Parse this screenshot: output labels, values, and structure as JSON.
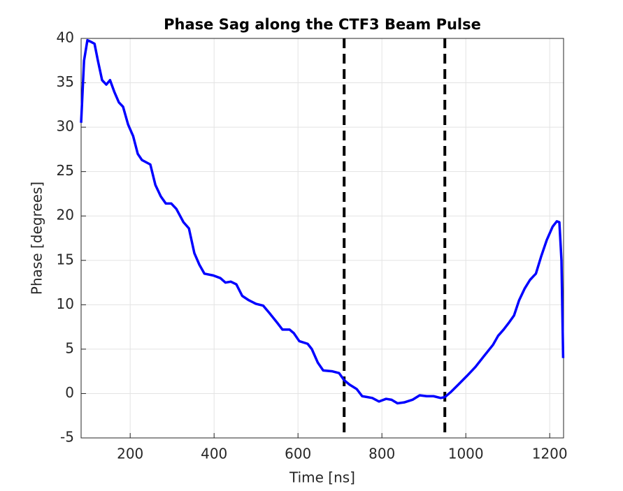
{
  "chart_data": {
    "type": "line",
    "title": "Phase Sag along the CTF3 Beam Pulse",
    "x_label": "Time [ns]",
    "y_label": "Phase [degrees]",
    "x": [
      83,
      90,
      98,
      107,
      115,
      123,
      133,
      143,
      152,
      162,
      173,
      183,
      195,
      207,
      218,
      228,
      248,
      260,
      273,
      285,
      298,
      310,
      327,
      340,
      353,
      365,
      377,
      398,
      415,
      427,
      440,
      453,
      467,
      483,
      500,
      517,
      533,
      550,
      563,
      580,
      590,
      603,
      623,
      633,
      647,
      660,
      682,
      698,
      710,
      723,
      740,
      753,
      765,
      777,
      793,
      810,
      823,
      837,
      853,
      873,
      890,
      907,
      923,
      940,
      950,
      965,
      982,
      1003,
      1023,
      1043,
      1065,
      1077,
      1090,
      1103,
      1115,
      1127,
      1140,
      1153,
      1167,
      1180,
      1193,
      1207,
      1217,
      1223,
      1228,
      1232
    ],
    "series": [
      {
        "color": "#0000ff",
        "values": [
          30.5,
          37.5,
          39.8,
          39.6,
          39.4,
          37.5,
          35.3,
          34.8,
          35.3,
          34,
          32.8,
          32.3,
          30.3,
          29,
          27,
          26.3,
          25.8,
          23.5,
          22.2,
          21.4,
          21.4,
          20.8,
          19.3,
          18.6,
          15.8,
          14.5,
          13.5,
          13.3,
          13.0,
          12.5,
          12.6,
          12.3,
          11.0,
          10.5,
          10.1,
          9.9,
          9.0,
          8.0,
          7.2,
          7.2,
          6.8,
          5.9,
          5.6,
          5.0,
          3.5,
          2.6,
          2.5,
          2.3,
          1.5,
          1.0,
          0.5,
          -0.3,
          -0.4,
          -0.5,
          -0.9,
          -0.6,
          -0.7,
          -1.1,
          -1.0,
          -0.7,
          -0.2,
          -0.3,
          -0.3,
          -0.5,
          -0.4,
          0.2,
          1.0,
          2.0,
          3.0,
          4.2,
          5.5,
          6.5,
          7.2,
          8.0,
          8.8,
          10.5,
          11.8,
          12.8,
          13.5,
          15.5,
          17.3,
          18.8,
          19.4,
          19.3,
          15,
          4
        ]
      }
    ],
    "vlines": [
      710,
      950
    ],
    "vline_color": "#000000",
    "xlim": [
      83,
      1233
    ],
    "xticks": [
      200,
      400,
      600,
      800,
      1000,
      1200
    ],
    "ylim": [
      -5,
      40
    ],
    "yticks": [
      -5,
      0,
      5,
      10,
      15,
      20,
      25,
      30,
      35,
      40
    ],
    "grid": true
  }
}
